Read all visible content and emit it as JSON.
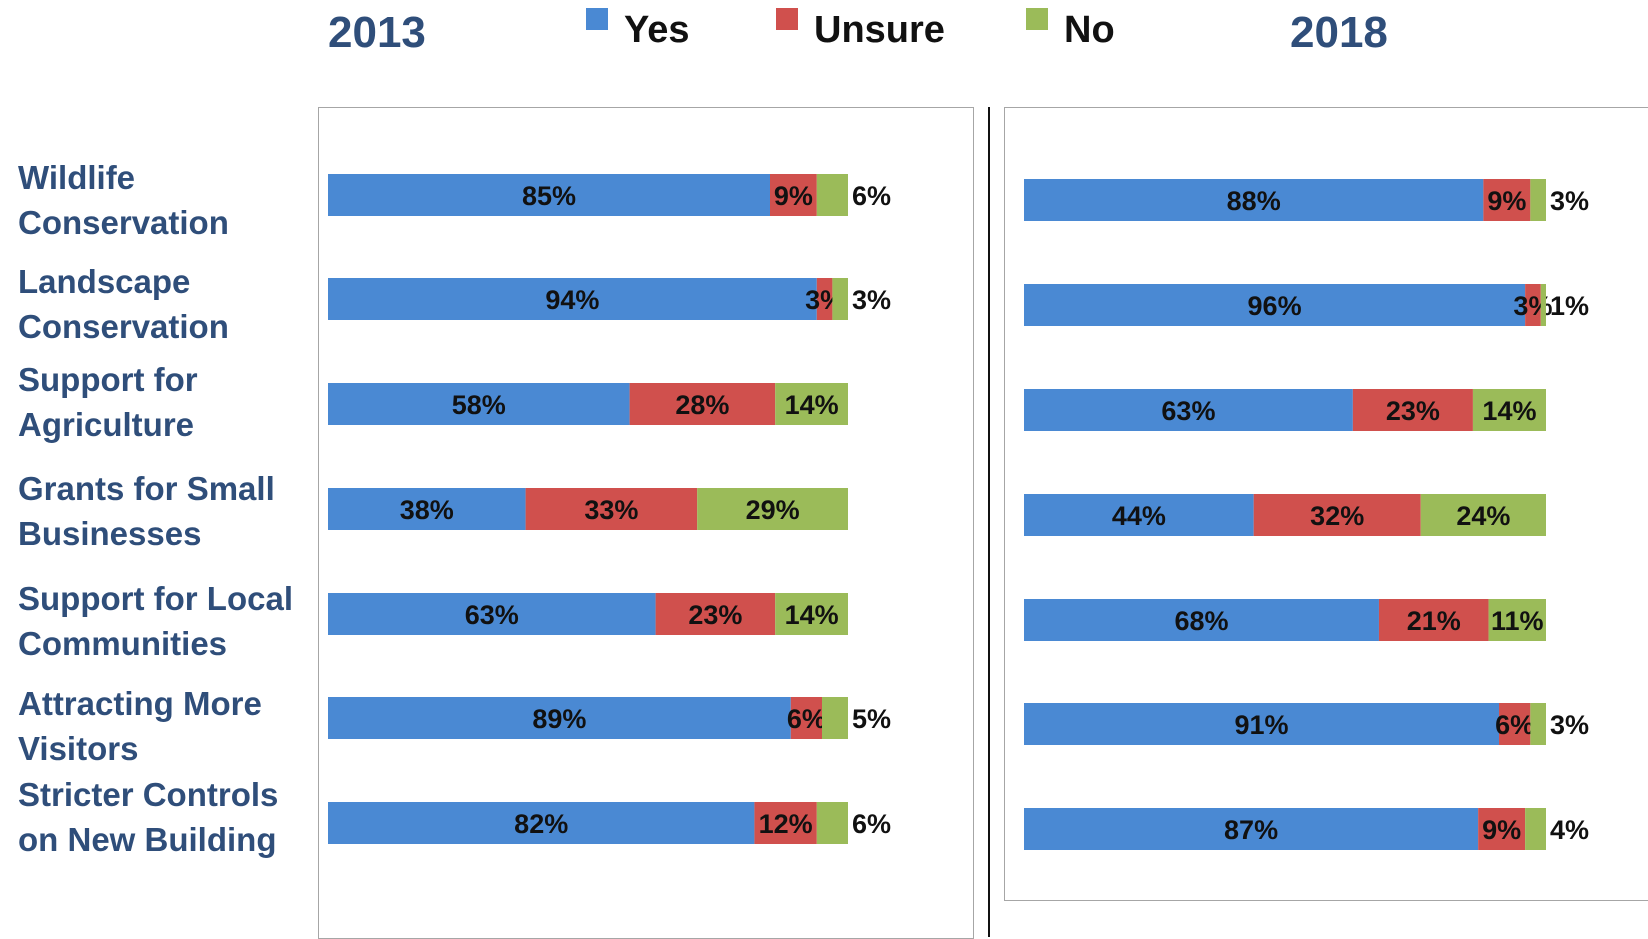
{
  "chart_data": [
    {
      "type": "bar",
      "orientation": "horizontal",
      "stacked": true,
      "title": "2013",
      "categories": [
        "Wildlife Conservation",
        "Landscape Conservation",
        "Support for Agriculture",
        "Grants for Small Businesses",
        "Support for Local Communities",
        "Attracting More Visitors",
        "Stricter Controls on New Building"
      ],
      "series": [
        {
          "name": "Yes",
          "values": [
            85,
            94,
            58,
            38,
            63,
            89,
            82
          ],
          "labels": [
            "85%",
            "94%",
            "58%",
            "38%",
            "63%",
            "89%",
            "82%"
          ]
        },
        {
          "name": "Unsure",
          "values": [
            9,
            3,
            28,
            33,
            23,
            6,
            12
          ],
          "labels": [
            "9%",
            "3%",
            "28%",
            "33%",
            "23%",
            "6%",
            "12%"
          ]
        },
        {
          "name": "No",
          "values": [
            6,
            3,
            14,
            29,
            14,
            5,
            6
          ],
          "labels": [
            "6%",
            "3%",
            "14%",
            "29%",
            "14%",
            "5%",
            "6%"
          ]
        }
      ],
      "xlim": [
        0,
        100
      ],
      "unit": "%",
      "grid": false
    },
    {
      "type": "bar",
      "orientation": "horizontal",
      "stacked": true,
      "title": "2018",
      "categories": [
        "Wildlife Conservation",
        "Landscape Conservation",
        "Support for Agriculture",
        "Grants for Small Businesses",
        "Support for Local Communities",
        "Attracting More Visitors",
        "Stricter Controls on New Building"
      ],
      "series": [
        {
          "name": "Yes",
          "values": [
            88,
            96,
            63,
            44,
            68,
            91,
            87
          ],
          "labels": [
            "88%",
            "96%",
            "63%",
            "44%",
            "68%",
            "91%",
            "87%"
          ]
        },
        {
          "name": "Unsure",
          "values": [
            9,
            3,
            23,
            32,
            21,
            6,
            9
          ],
          "labels": [
            "9%",
            "3%",
            "23%",
            "32%",
            "21%",
            "6%",
            "9%"
          ]
        },
        {
          "name": "No",
          "values": [
            3,
            1,
            14,
            24,
            11,
            3,
            4
          ],
          "labels": [
            "3%",
            "1%",
            "14%",
            "24%",
            "11%",
            "3%",
            "4%"
          ]
        }
      ],
      "xlim": [
        0,
        100
      ],
      "unit": "%",
      "grid": false
    }
  ],
  "legend": {
    "placement": "top-center",
    "items": [
      {
        "label": "Yes",
        "color": "#4A89D3"
      },
      {
        "label": "Unsure",
        "color": "#D0504D"
      },
      {
        "label": "No",
        "color": "#9BBB59"
      }
    ]
  },
  "category_labels": [
    {
      "line1": "Wildlife",
      "line2": "Conservation"
    },
    {
      "line1": "Landscape",
      "line2": "Conservation"
    },
    {
      "line1": "Support for",
      "line2": "Agriculture"
    },
    {
      "line1": "Grants for Small",
      "line2": "Businesses"
    },
    {
      "line1": "Support for Local",
      "line2": "Communities"
    },
    {
      "line1": "Attracting More",
      "line2": "Visitors"
    },
    {
      "line1": "Stricter Controls",
      "line2": "on New Building"
    }
  ],
  "colors": {
    "yes": "#4A89D3",
    "unsure": "#D0504D",
    "no": "#9BBB59",
    "title": "#2F4E7A"
  }
}
